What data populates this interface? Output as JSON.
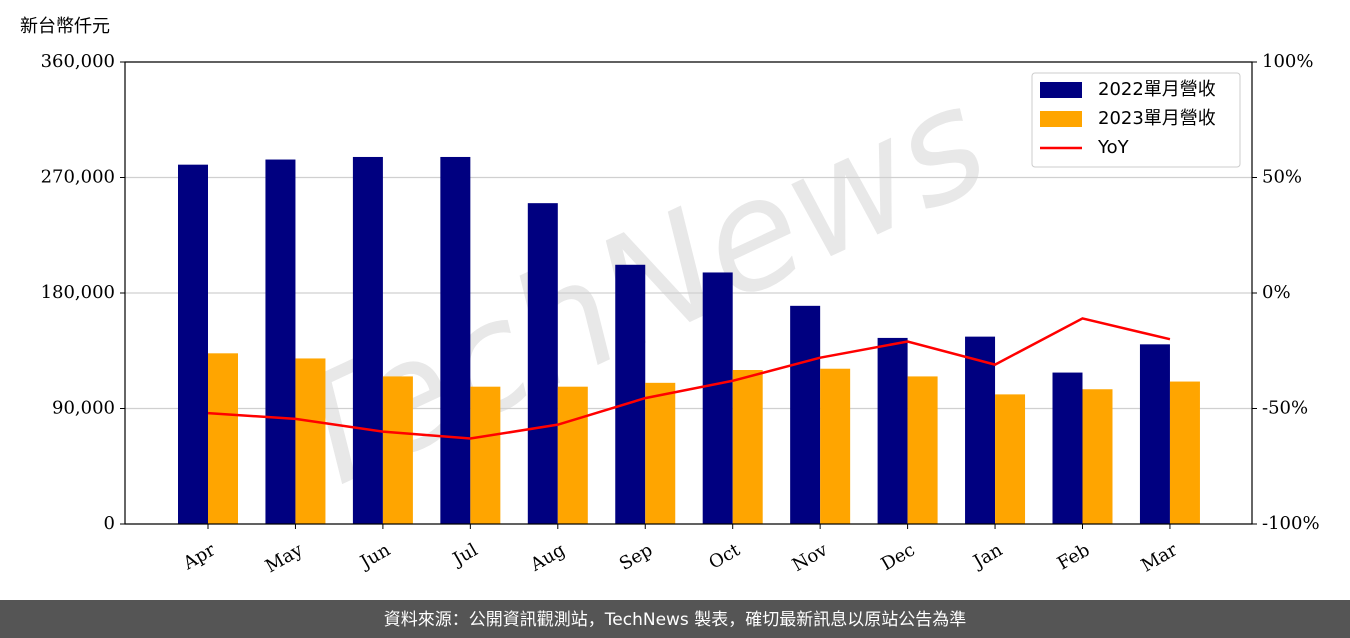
{
  "chart_data": {
    "type": "bar",
    "ylabel": "新台幣仟元",
    "watermark": "TechNews",
    "footer": "資料來源：公開資訊觀測站，TechNews 製表，確切最新訊息以原站公告為準",
    "categories": [
      "Apr",
      "May",
      "Jun",
      "Jul",
      "Aug",
      "Sep",
      "Oct",
      "Nov",
      "Dec",
      "Jan",
      "Feb",
      "Mar"
    ],
    "series": [
      {
        "name": "2022單月營收",
        "color": "#000080",
        "type": "bar",
        "values": [
          280000,
          284000,
          286000,
          286000,
          250000,
          202000,
          196000,
          170000,
          145000,
          146000,
          118000,
          140000
        ]
      },
      {
        "name": "2023單月營收",
        "color": "#ffa500",
        "type": "bar",
        "values": [
          133000,
          129000,
          115000,
          107000,
          107000,
          110000,
          120000,
          121000,
          115000,
          101000,
          105000,
          111000
        ]
      },
      {
        "name": "YoY",
        "color": "#ff0000",
        "type": "line",
        "axis": "y2",
        "values": [
          -52,
          -54.5,
          -60,
          -63,
          -57,
          -45.5,
          -38,
          -28,
          -21,
          -31,
          -11,
          -20
        ]
      }
    ],
    "ylim": [
      0,
      360000
    ],
    "yticks": [
      0,
      {
        "value": 90000,
        "label": "90,000"
      },
      {
        "value": 180000,
        "label": "180,000"
      },
      {
        "value": 270000,
        "label": "270,000"
      },
      {
        "value": 360000,
        "label": "360,000"
      }
    ],
    "y2lim": [
      -100,
      100
    ],
    "y2ticks": [
      {
        "value": -100,
        "label": "-100%"
      },
      {
        "value": -50,
        "label": "-50%"
      },
      {
        "value": 0,
        "label": "0%"
      },
      {
        "value": 50,
        "label": "50%"
      },
      {
        "value": 100,
        "label": "100%"
      }
    ],
    "grid": true,
    "legend": "upper right"
  }
}
